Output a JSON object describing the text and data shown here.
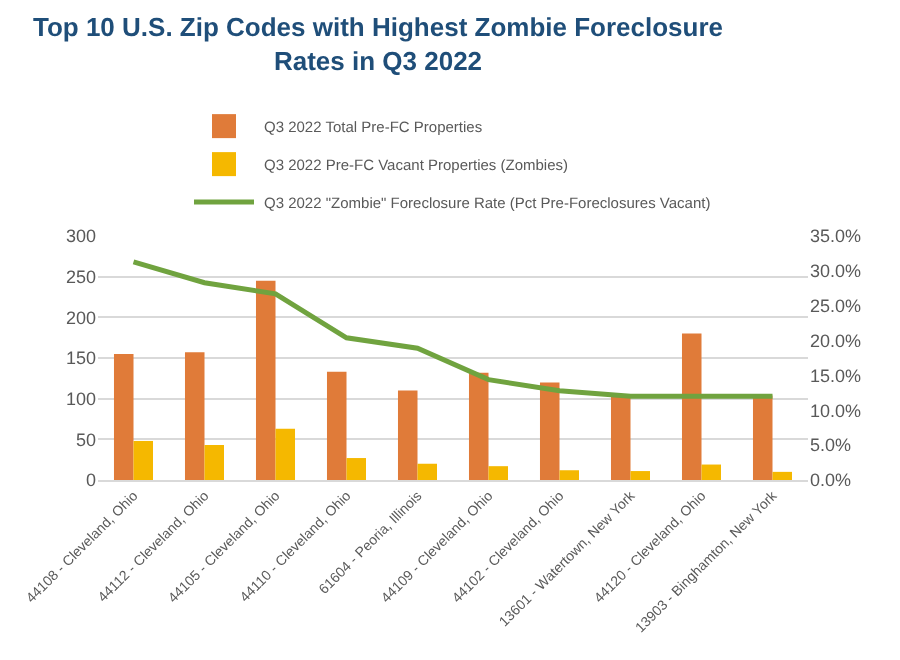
{
  "chart_data": {
    "type": "bar",
    "title": "Top 10 U.S. Zip Codes with Highest Zombie Foreclosure Rates in Q3 2022",
    "categories": [
      "44108 - Cleveland, Ohio",
      "44112 - Cleveland, Ohio",
      "44105 - Cleveland, Ohio",
      "44110 - Cleveland, Ohio",
      "61604 - Peoria, Illinois",
      "44109 - Cleveland, Ohio",
      "44102 - Cleveland, Ohio",
      "13601 - Watertown, New York",
      "44120 - Cleveland, Ohio",
      "13903 - Binghamton, New York"
    ],
    "series": [
      {
        "name": "Q3 2022 Total Pre-FC Properties",
        "color": "#e07b39",
        "values": [
          155,
          157,
          245,
          133,
          110,
          132,
          120,
          104,
          180,
          104
        ]
      },
      {
        "name": "Q3 2022 Pre-FC Vacant Properties (Zombies)",
        "color": "#f5b800",
        "values": [
          48,
          43,
          63,
          27,
          20,
          17,
          12,
          11,
          19,
          10
        ]
      },
      {
        "name": "Q3 2022 \"Zombie\" Foreclosure Rate (Pct Pre-Foreclosures Vacant)",
        "type": "line",
        "axis": "y2",
        "color": "#70a33f",
        "values": [
          31.3,
          28.3,
          26.7,
          20.4,
          18.9,
          14.4,
          12.8,
          12.0,
          12.0,
          12.0
        ]
      }
    ],
    "ylim": [
      0,
      300
    ],
    "yticks": [
      0,
      50,
      100,
      150,
      200,
      250,
      300
    ],
    "y2lim": [
      0,
      35
    ],
    "y2ticks": [
      {
        "value": 0,
        "label": "0.0%"
      },
      {
        "value": 5,
        "label": "5.0%"
      },
      {
        "value": 10,
        "label": "10.0%"
      },
      {
        "value": 15,
        "label": "15.0%"
      },
      {
        "value": 20,
        "label": "20.0%"
      },
      {
        "value": 25,
        "label": "25.0%"
      },
      {
        "value": 30,
        "label": "30.0%"
      },
      {
        "value": 35,
        "label": "35.0%"
      }
    ],
    "grid": "y",
    "legend": "top",
    "marker": "none",
    "line_style": "solid"
  }
}
